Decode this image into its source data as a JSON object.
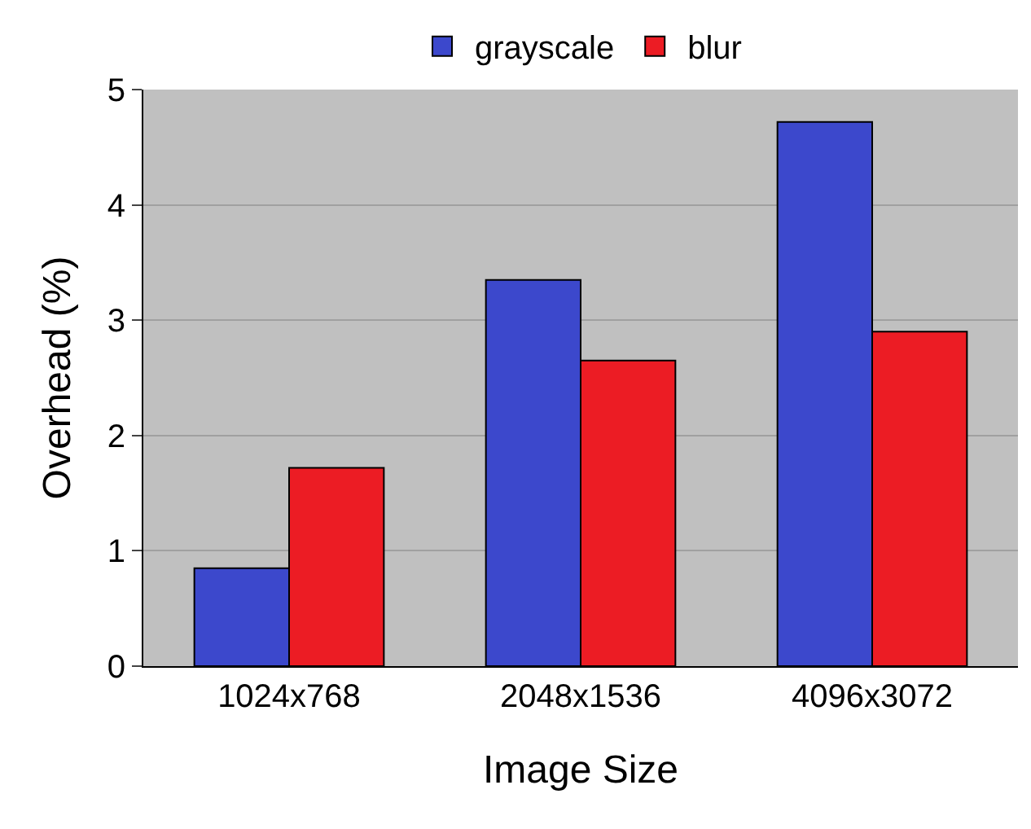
{
  "chart_data": {
    "type": "bar",
    "xlabel": "Image Size",
    "ylabel": "Overhead (%)",
    "categories": [
      "1024x768",
      "2048x1536",
      "4096x3072"
    ],
    "series": [
      {
        "name": "grayscale",
        "color": "#3c48cc",
        "values": [
          0.85,
          3.35,
          4.72
        ]
      },
      {
        "name": "blur",
        "color": "#ec1c24",
        "values": [
          1.72,
          2.65,
          2.9
        ]
      }
    ],
    "ylim": [
      0,
      5
    ],
    "yticks": [
      0,
      1,
      2,
      3,
      4,
      5
    ],
    "grid": "y",
    "legend": "top"
  }
}
